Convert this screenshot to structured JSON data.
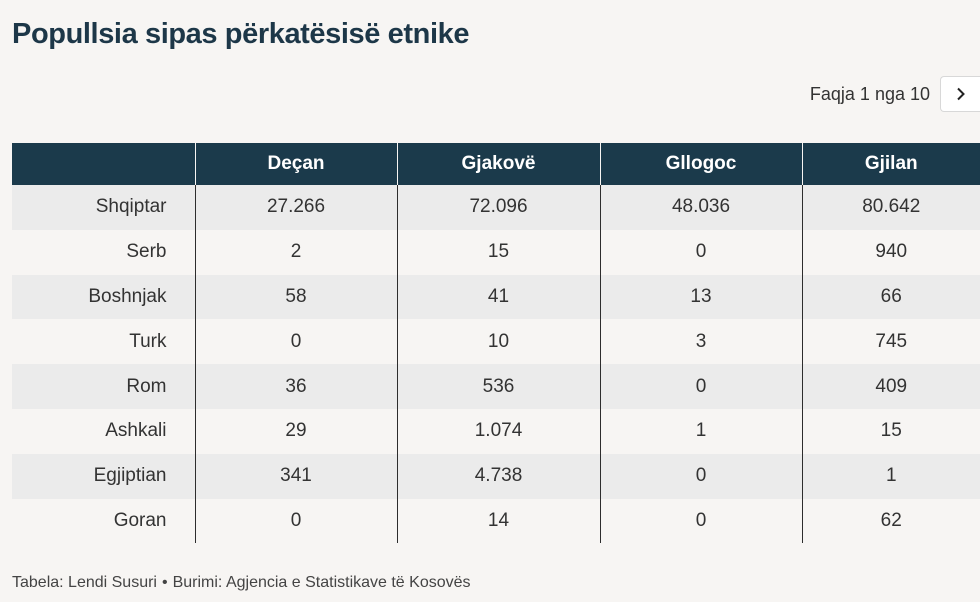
{
  "title": "Popullsia sipas përkatësisë etnike",
  "pager": {
    "label": "Faqja 1 nga 10",
    "next_icon": "chevron-right-icon"
  },
  "table": {
    "headers": [
      "",
      "Deçan",
      "Gjakovë",
      "Gllogoc",
      "Gjilan"
    ],
    "rows": [
      [
        "Shqiptar",
        "27.266",
        "72.096",
        "48.036",
        "80.642"
      ],
      [
        "Serb",
        "2",
        "15",
        "0",
        "940"
      ],
      [
        "Boshnjak",
        "58",
        "41",
        "13",
        "66"
      ],
      [
        "Turk",
        "0",
        "10",
        "3",
        "745"
      ],
      [
        "Rom",
        "36",
        "536",
        "0",
        "409"
      ],
      [
        "Ashkali",
        "29",
        "1.074",
        "1",
        "15"
      ],
      [
        "Egjiptian",
        "341",
        "4.738",
        "0",
        "1"
      ],
      [
        "Goran",
        "0",
        "14",
        "0",
        "62"
      ]
    ]
  },
  "footer": {
    "author": "Tabela: Lendi Susuri",
    "separator": "•",
    "source": "Burimi: Agjencia e Statistikave të Kosovës"
  },
  "colors": {
    "header_bg": "#1b3a4b",
    "title": "#1d3748",
    "row_alt": "#ebebeb",
    "page_bg": "#f7f5f3"
  }
}
